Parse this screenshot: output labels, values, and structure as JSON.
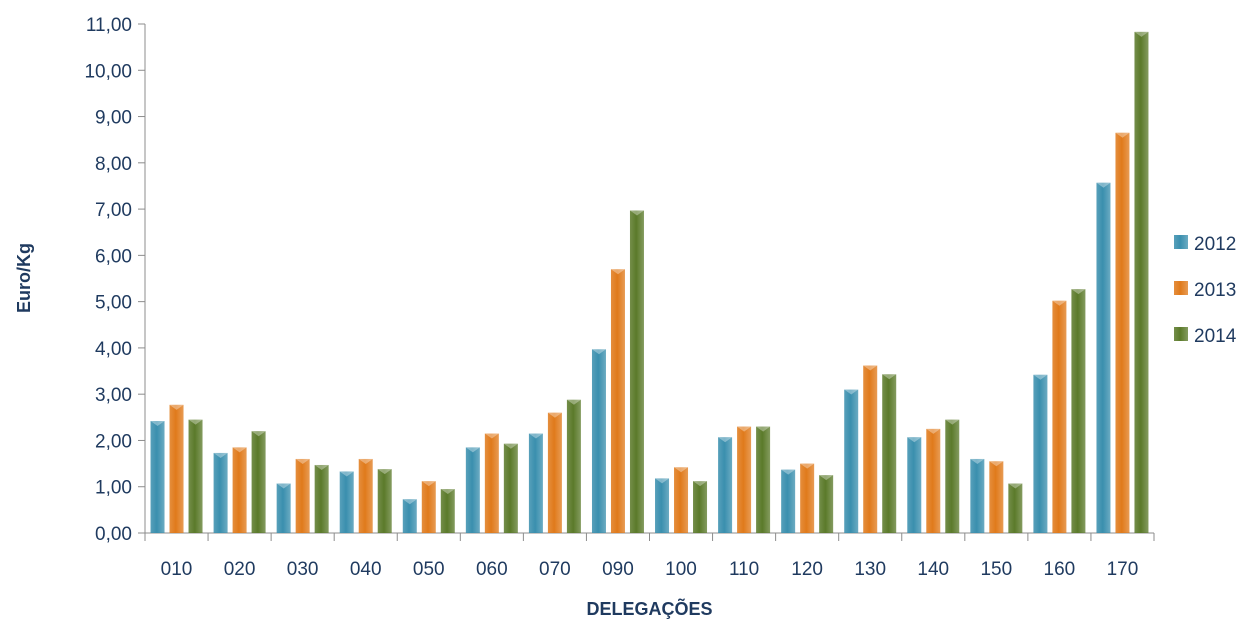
{
  "chart_data": {
    "type": "bar",
    "title": "",
    "xlabel": "DELEGAÇÕES",
    "ylabel": "Euro/Kg",
    "categories": [
      "010",
      "020",
      "030",
      "040",
      "050",
      "060",
      "070",
      "090",
      "100",
      "110",
      "120",
      "130",
      "140",
      "150",
      "160",
      "170"
    ],
    "series": [
      {
        "name": "2012",
        "color": "#3a8fae",
        "values": [
          2.42,
          1.73,
          1.07,
          1.33,
          0.73,
          1.85,
          2.15,
          3.97,
          1.18,
          2.07,
          1.37,
          3.1,
          2.07,
          1.6,
          3.42,
          7.57
        ]
      },
      {
        "name": "2013",
        "color": "#e07a1b",
        "values": [
          2.77,
          1.85,
          1.6,
          1.6,
          1.12,
          2.15,
          2.6,
          5.7,
          1.42,
          2.3,
          1.5,
          3.62,
          2.25,
          1.55,
          5.02,
          8.65
        ]
      },
      {
        "name": "2014",
        "color": "#5b7a2a",
        "values": [
          2.45,
          2.2,
          1.47,
          1.38,
          0.95,
          1.93,
          2.88,
          6.97,
          1.12,
          2.3,
          1.25,
          3.43,
          2.45,
          1.07,
          5.27,
          10.83
        ]
      }
    ],
    "ylim": [
      0,
      11
    ],
    "yticks": [
      0,
      1,
      2,
      3,
      4,
      5,
      6,
      7,
      8,
      9,
      10,
      11
    ],
    "ytick_labels": [
      "0,00",
      "1,00",
      "2,00",
      "3,00",
      "4,00",
      "5,00",
      "6,00",
      "7,00",
      "8,00",
      "9,00",
      "10,00",
      "11,00"
    ],
    "legend_position": "right",
    "grid": false
  }
}
